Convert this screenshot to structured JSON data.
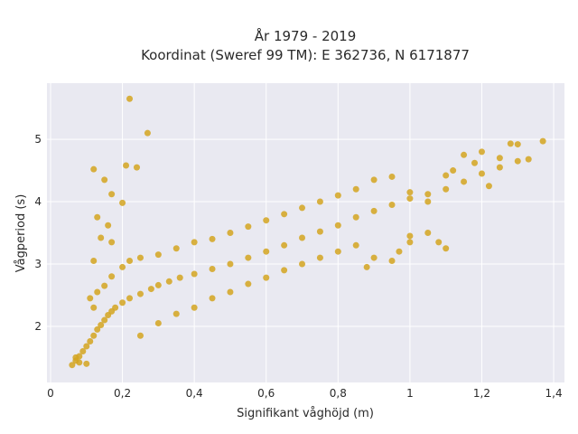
{
  "chart_data": {
    "type": "scatter",
    "title_line1": "År 1979 - 2019",
    "title_line2": "Koordinat (Sweref 99 TM): E 362736, N 6171877",
    "xlabel": "Signifikant våghöjd (m)",
    "ylabel": "Vågperiod (s)",
    "xlim": [
      -0.01,
      1.43
    ],
    "ylim": [
      1.1,
      5.9
    ],
    "xticks": [
      0,
      0.2,
      0.4,
      0.6,
      0.8,
      1,
      1.2,
      1.4
    ],
    "xtick_labels": [
      "0",
      "0,2",
      "0,4",
      "0,6",
      "0,8",
      "1",
      "1,2",
      "1,4"
    ],
    "yticks": [
      2,
      3,
      4,
      5
    ],
    "ytick_labels": [
      "2",
      "3",
      "4",
      "5"
    ],
    "grid": true,
    "colors": {
      "marker": "#d4a520",
      "plot_bg": "#e9e9f1",
      "grid": "#ffffff"
    },
    "series": [
      {
        "points": [
          [
            0.06,
            1.38
          ],
          [
            0.07,
            1.45
          ],
          [
            0.08,
            1.52
          ],
          [
            0.09,
            1.6
          ],
          [
            0.1,
            1.68
          ],
          [
            0.11,
            1.76
          ],
          [
            0.12,
            1.85
          ],
          [
            0.13,
            1.95
          ],
          [
            0.14,
            2.02
          ],
          [
            0.15,
            2.1
          ],
          [
            0.16,
            2.18
          ],
          [
            0.17,
            2.24
          ],
          [
            0.18,
            2.3
          ],
          [
            0.2,
            2.38
          ],
          [
            0.22,
            2.45
          ],
          [
            0.25,
            2.52
          ],
          [
            0.28,
            2.6
          ],
          [
            0.3,
            2.66
          ],
          [
            0.33,
            2.72
          ],
          [
            0.36,
            2.78
          ],
          [
            0.4,
            2.84
          ],
          [
            0.45,
            2.92
          ],
          [
            0.5,
            3.0
          ],
          [
            0.55,
            3.1
          ],
          [
            0.6,
            3.2
          ],
          [
            0.65,
            3.3
          ],
          [
            0.7,
            3.42
          ],
          [
            0.75,
            3.52
          ],
          [
            0.8,
            3.62
          ],
          [
            0.85,
            3.75
          ],
          [
            0.9,
            3.85
          ],
          [
            0.95,
            3.95
          ],
          [
            1.0,
            4.05
          ],
          [
            1.05,
            4.12
          ],
          [
            1.1,
            4.2
          ],
          [
            1.15,
            4.32
          ],
          [
            1.2,
            4.45
          ],
          [
            1.25,
            4.55
          ],
          [
            1.3,
            4.65
          ],
          [
            1.33,
            4.68
          ],
          [
            1.37,
            4.97
          ],
          [
            1.3,
            4.92
          ],
          [
            1.28,
            4.93
          ],
          [
            1.2,
            4.8
          ],
          [
            1.15,
            4.75
          ],
          [
            1.22,
            4.25
          ],
          [
            1.0,
            3.35
          ],
          [
            1.1,
            3.25
          ],
          [
            0.22,
            5.65
          ],
          [
            0.27,
            5.1
          ],
          [
            0.12,
            4.52
          ],
          [
            0.21,
            4.58
          ],
          [
            0.24,
            4.55
          ],
          [
            0.15,
            4.35
          ],
          [
            0.17,
            4.12
          ],
          [
            0.13,
            3.75
          ],
          [
            0.2,
            3.98
          ],
          [
            0.16,
            3.62
          ],
          [
            0.12,
            3.05
          ],
          [
            0.17,
            3.35
          ],
          [
            0.14,
            3.42
          ],
          [
            0.1,
            1.4
          ],
          [
            0.07,
            1.5
          ],
          [
            0.08,
            1.42
          ],
          [
            0.12,
            2.3
          ],
          [
            0.11,
            2.45
          ],
          [
            0.13,
            2.55
          ],
          [
            0.15,
            2.65
          ],
          [
            0.17,
            2.8
          ],
          [
            0.2,
            2.95
          ],
          [
            0.22,
            3.05
          ],
          [
            0.25,
            3.1
          ],
          [
            0.3,
            3.15
          ],
          [
            0.35,
            3.25
          ],
          [
            0.4,
            3.35
          ],
          [
            0.45,
            3.4
          ],
          [
            0.5,
            3.5
          ],
          [
            0.55,
            3.6
          ],
          [
            0.6,
            3.7
          ],
          [
            0.65,
            3.8
          ],
          [
            0.7,
            3.9
          ],
          [
            0.75,
            4.0
          ],
          [
            0.8,
            4.1
          ],
          [
            0.85,
            4.2
          ],
          [
            0.9,
            4.35
          ],
          [
            0.95,
            4.4
          ],
          [
            1.0,
            4.15
          ],
          [
            1.05,
            4.0
          ],
          [
            0.25,
            1.85
          ],
          [
            0.3,
            2.05
          ],
          [
            0.35,
            2.2
          ],
          [
            0.4,
            2.3
          ],
          [
            0.45,
            2.45
          ],
          [
            0.5,
            2.55
          ],
          [
            0.55,
            2.68
          ],
          [
            0.6,
            2.78
          ],
          [
            0.65,
            2.9
          ],
          [
            0.7,
            3.0
          ],
          [
            0.75,
            3.1
          ],
          [
            0.8,
            3.2
          ],
          [
            0.85,
            3.3
          ],
          [
            0.9,
            3.1
          ],
          [
            0.95,
            3.05
          ],
          [
            0.88,
            2.95
          ],
          [
            1.0,
            3.45
          ],
          [
            1.05,
            3.5
          ],
          [
            1.08,
            3.35
          ],
          [
            0.97,
            3.2
          ],
          [
            1.12,
            4.5
          ],
          [
            1.18,
            4.62
          ],
          [
            1.25,
            4.7
          ],
          [
            1.1,
            4.42
          ]
        ]
      }
    ]
  }
}
